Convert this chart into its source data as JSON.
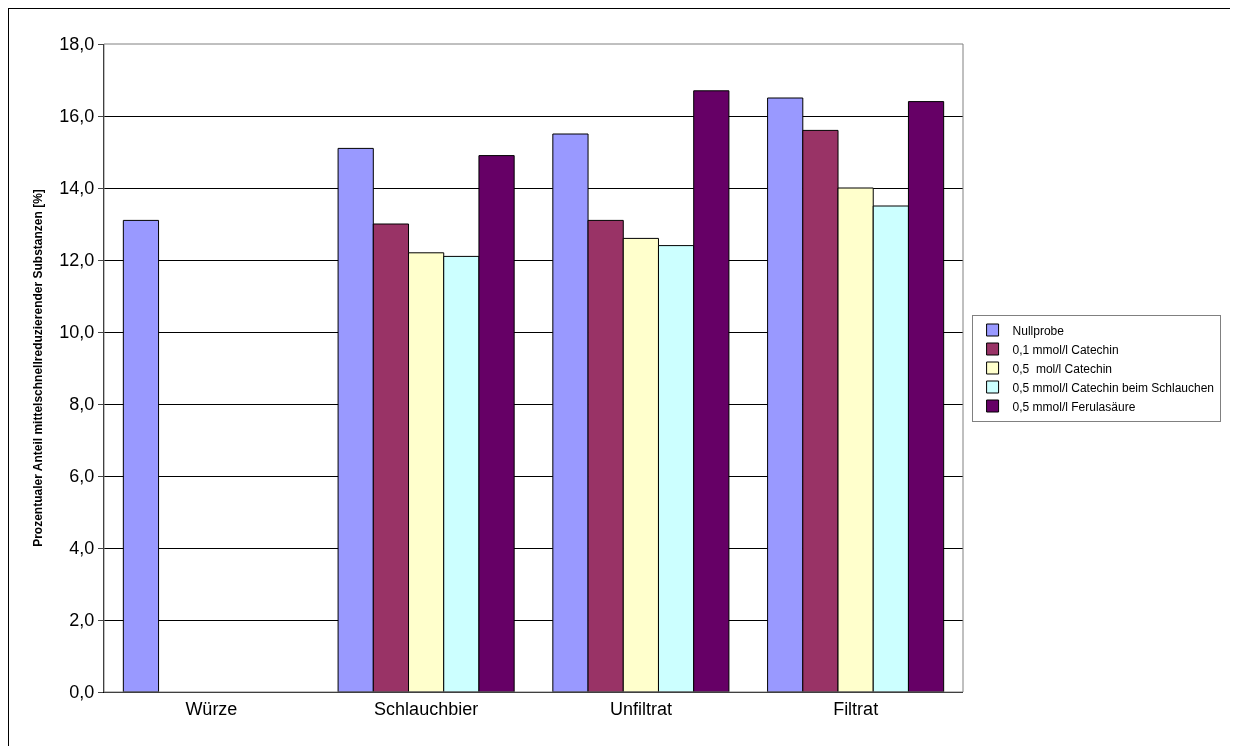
{
  "chart_data": {
    "type": "bar",
    "ylabel": "Prozentualer Anteil mittelschnellreduzierender Substanzen [%]",
    "categories": [
      "Würze",
      "Schlauchbier",
      "Unfiltrat",
      "Filtrat"
    ],
    "series": [
      {
        "name": "Nullprobe",
        "color": "#9999ff",
        "values": [
          13.1,
          15.1,
          15.5,
          16.5
        ]
      },
      {
        "name": "0,1 mmol/l Catechin",
        "color": "#993366",
        "values": [
          null,
          13.0,
          13.1,
          15.6
        ]
      },
      {
        "name": "0,5  mol/l Catechin",
        "color": "#ffffcc",
        "values": [
          null,
          12.2,
          12.6,
          14.0
        ]
      },
      {
        "name": "0,5 mmol/l Catechin beim Schlauchen",
        "color": "#ccffff",
        "values": [
          null,
          12.1,
          12.4,
          13.5
        ]
      },
      {
        "name": "0,5 mmol/l Ferulasäure",
        "color": "#660066",
        "values": [
          null,
          14.9,
          16.7,
          16.4
        ]
      }
    ],
    "ylim": [
      0,
      18
    ],
    "yticks": [
      {
        "value": 0,
        "label": "0,0"
      },
      {
        "value": 2,
        "label": "2,0"
      },
      {
        "value": 4,
        "label": "4,0"
      },
      {
        "value": 6,
        "label": "6,0"
      },
      {
        "value": 8,
        "label": "8,0"
      },
      {
        "value": 10,
        "label": "10,0"
      },
      {
        "value": 12,
        "label": "12,0"
      },
      {
        "value": 14,
        "label": "14,0"
      },
      {
        "value": 16,
        "label": "16,0"
      },
      {
        "value": 18,
        "label": "18,0"
      }
    ],
    "grid": "y",
    "legend": "right"
  }
}
